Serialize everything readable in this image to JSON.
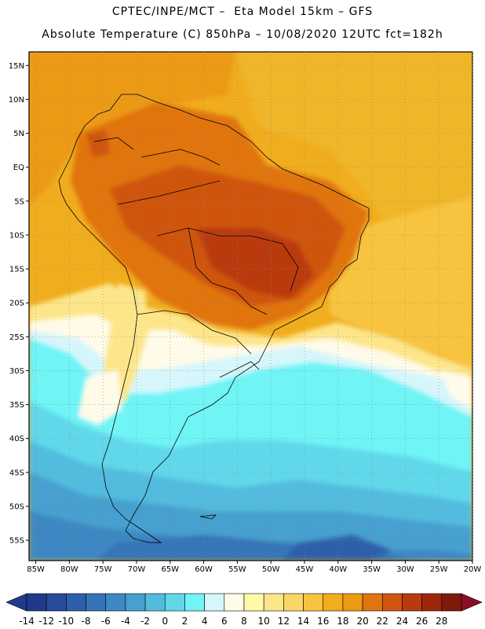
{
  "header": {
    "line1": "CPTEC/INPE/MCT –  Eta Model 15km – GFS",
    "line2": "Absolute Temperature (C) 850hPa – 10/08/2020 12UTC fct=182h"
  },
  "map": {
    "lat_labels": [
      "15N",
      "10N",
      "5N",
      "EQ",
      "5S",
      "10S",
      "15S",
      "20S",
      "25S",
      "30S",
      "35S",
      "40S",
      "45S",
      "50S",
      "55S"
    ],
    "lon_labels": [
      "85W",
      "80W",
      "75W",
      "70W",
      "65W",
      "60W",
      "55W",
      "50W",
      "45W",
      "40W",
      "35W",
      "30W",
      "25W",
      "20W"
    ],
    "lat_values": [
      15,
      10,
      5,
      0,
      -5,
      -10,
      -15,
      -20,
      -25,
      -30,
      -35,
      -40,
      -45,
      -50,
      -55
    ],
    "lon_values": [
      -85,
      -80,
      -75,
      -70,
      -65,
      -60,
      -55,
      -50,
      -45,
      -40,
      -35,
      -30,
      -25,
      -20
    ],
    "extent": {
      "lon_min": -86,
      "lon_max": -20,
      "lat_min": -58,
      "lat_max": 17
    }
  },
  "colorbar": {
    "labels": [
      "-14",
      "-12",
      "-10",
      "-8",
      "-6",
      "-4",
      "-2",
      "0",
      "2",
      "4",
      "6",
      "8",
      "10",
      "12",
      "14",
      "16",
      "18",
      "20",
      "22",
      "24",
      "26",
      "28"
    ],
    "colors": [
      "#1f3a8a",
      "#264c9a",
      "#2d60aa",
      "#3574b8",
      "#3e88c3",
      "#47a0cf",
      "#52bcde",
      "#60d8ea",
      "#70f4f6",
      "#d6f6fb",
      "#fffbe8",
      "#fffaa8",
      "#fde68a",
      "#fbd665",
      "#f8c440",
      "#f0ad1e",
      "#ec9a12",
      "#e07410",
      "#cf5511",
      "#b93a0e",
      "#9e270b",
      "#7e1a0a",
      "#8a0e2a"
    ]
  }
}
